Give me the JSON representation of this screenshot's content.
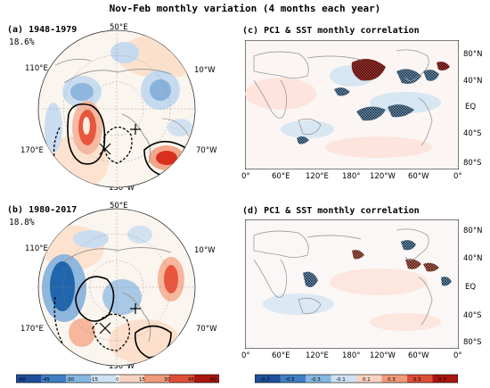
{
  "title": "Nov-Feb monthly variation (4 months each year)",
  "panels": {
    "a": {
      "label": "(a) 1948-1979",
      "pct": "18.6%"
    },
    "b": {
      "label": "(b) 1980-2017",
      "pct": "18.8%"
    },
    "c": {
      "label": "(c) PC1 & SST monthly correlation"
    },
    "d": {
      "label": "(d) PC1 & SST monthly correlation"
    }
  },
  "polar_labels": {
    "top": "50°E",
    "left_upper": "110°E",
    "right_upper": "10°W",
    "left_lower": "170°E",
    "right_lower": "70°W",
    "bottom": "130°W"
  },
  "map_lat_labels": [
    "80°N",
    "40°N",
    "EQ",
    "40°S",
    "80°S"
  ],
  "map_lon_labels": [
    "0°",
    "60°E",
    "120°E",
    "180°",
    "120°W",
    "60°W",
    "0°"
  ],
  "colorbar_left": {
    "ticks": [
      "-60",
      "-45",
      "-30",
      "-15",
      "0",
      "15",
      "30",
      "45",
      "60"
    ]
  },
  "colorbar_right": {
    "ticks": [
      "-0.7",
      "-0.5",
      "-0.3",
      "-0.1",
      "0.1",
      "0.3",
      "0.5",
      "0.7"
    ]
  },
  "colors": {
    "positive": "#d7301f",
    "negative": "#2166ac",
    "land": "#9a9a9a"
  }
}
